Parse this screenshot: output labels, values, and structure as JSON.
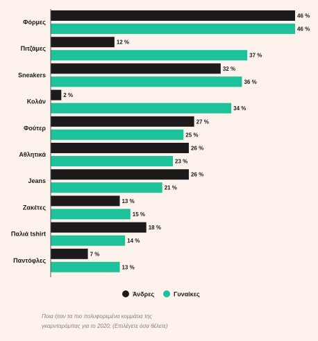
{
  "chart_data": {
    "type": "bar",
    "orientation": "horizontal",
    "categories": [
      "Φόρμες",
      "Πιτζάμες",
      "Sneakers",
      "Κολάν",
      "Φούτερ",
      "Αθλητικά",
      "Jeans",
      "Ζακέτες",
      "Παλιά tshirt",
      "Παντόφλες"
    ],
    "series": [
      {
        "name": "Άνδρες",
        "color": "#1c1a1b",
        "values": [
          46,
          12,
          32,
          2,
          27,
          26,
          26,
          13,
          18,
          7
        ]
      },
      {
        "name": "Γυναίκες",
        "color": "#1ec29a",
        "values": [
          46,
          37,
          36,
          34,
          25,
          23,
          21,
          15,
          14,
          13
        ]
      }
    ],
    "value_suffix": " %",
    "xlim": [
      0,
      46
    ],
    "legend_position": "bottom",
    "grid": false
  },
  "caption": {
    "line1": "Ποια ήταν τα πιο πολυφορεμένα κομμάτια της",
    "line2": "γκαρνταρόμπας για το 2020; (Επιλέγετε όσα θέλετε)"
  }
}
